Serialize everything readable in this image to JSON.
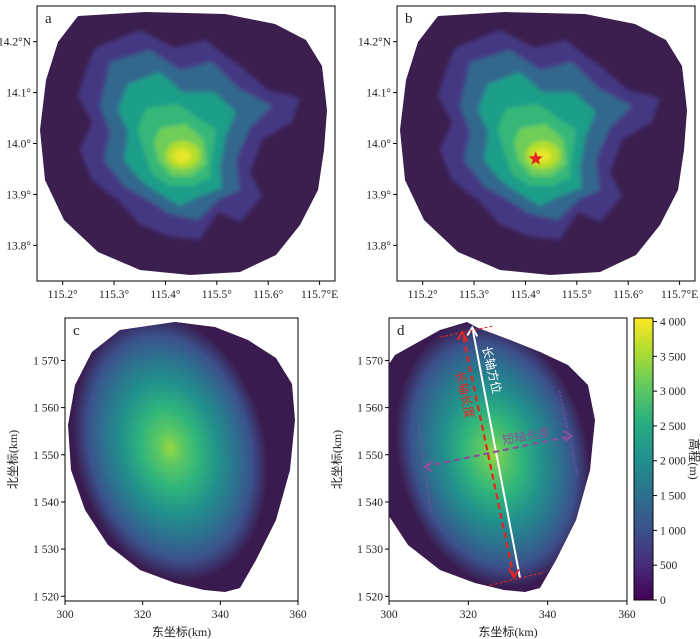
{
  "chart_data": [
    {
      "panel": "a",
      "type": "heatmap",
      "x_ticks": [
        "115.2°",
        "115.3°",
        "115.4°",
        "115.5°",
        "115.6°",
        "115.7°E"
      ],
      "x_values": [
        115.2,
        115.3,
        115.4,
        115.5,
        115.6,
        115.7
      ],
      "y_ticks": [
        "13.8°",
        "13.9°",
        "14.0°",
        "14.1°",
        "14.2°N"
      ],
      "y_values": [
        13.8,
        13.9,
        14.0,
        14.1,
        14.2
      ],
      "xlim": [
        115.15,
        115.73
      ],
      "ylim": [
        13.73,
        14.27
      ],
      "peak": {
        "lon": 115.41,
        "lat": 13.98
      }
    },
    {
      "panel": "b",
      "type": "heatmap",
      "x_ticks": [
        "115.2°",
        "115.3°",
        "115.4°",
        "115.5°",
        "115.6°",
        "115.7°E"
      ],
      "x_values": [
        115.2,
        115.3,
        115.4,
        115.5,
        115.6,
        115.7
      ],
      "y_ticks": [
        "13.8°",
        "13.9°",
        "14.0°",
        "14.1°",
        "14.2°N"
      ],
      "y_values": [
        13.8,
        13.9,
        14.0,
        14.1,
        14.2
      ],
      "xlim": [
        115.15,
        115.73
      ],
      "ylim": [
        13.73,
        14.27
      ],
      "star": {
        "lon": 115.42,
        "lat": 13.97,
        "color": "#e8241f"
      }
    },
    {
      "panel": "c",
      "type": "heatmap",
      "xlabel": "东坐标(km)",
      "ylabel": "北坐标(km)",
      "x_ticks": [
        "300",
        "320",
        "340",
        "360"
      ],
      "x_values": [
        300,
        320,
        340,
        360
      ],
      "y_ticks": [
        "1 520",
        "1 530",
        "1 540",
        "1 550",
        "1 560",
        "1 570"
      ],
      "y_values": [
        1520,
        1530,
        1540,
        1550,
        1560,
        1570
      ],
      "xlim": [
        300,
        360
      ],
      "ylim": [
        1519,
        1579
      ],
      "center": {
        "x": 327.5,
        "y": 1550.5
      }
    },
    {
      "panel": "d",
      "type": "heatmap",
      "xlabel": "东坐标(km)",
      "ylabel": "北坐标(km)",
      "x_ticks": [
        "300",
        "320",
        "340",
        "360"
      ],
      "x_values": [
        300,
        320,
        340,
        360
      ],
      "y_ticks": [
        "1 520",
        "1 530",
        "1 540",
        "1 550",
        "1 560",
        "1 570"
      ],
      "y_values": [
        1520,
        1530,
        1540,
        1550,
        1560,
        1570
      ],
      "xlim": [
        300,
        360
      ],
      "ylim": [
        1519,
        1579
      ],
      "annotations": {
        "long_axis": "长轴方位",
        "long_axis_length": "长轴长度",
        "short_axis_length": "短轴长度"
      },
      "long_axis_line": {
        "from": [
          333,
          1524
        ],
        "to": [
          321,
          1577
        ],
        "color": "#ffffff"
      },
      "long_length_line": {
        "from": [
          331.5,
          1524
        ],
        "to": [
          318.5,
          1576
        ],
        "color": "#e8241f"
      },
      "short_length_line": {
        "from": [
          309,
          1547.5
        ],
        "to": [
          346,
          1554
        ],
        "color": "#8a4f9a"
      }
    }
  ],
  "panel_labels": [
    "a",
    "b",
    "c",
    "d"
  ],
  "colorbar": {
    "label": "高程(m)",
    "ticks": [
      "0",
      "500",
      "1 000",
      "1 500",
      "2 000",
      "2 500",
      "3 000",
      "3 500",
      "4 000"
    ],
    "values": [
      0,
      500,
      1000,
      1500,
      2000,
      2500,
      3000,
      3500,
      4000
    ],
    "range": [
      0,
      4050
    ],
    "colormap": "viridis"
  }
}
